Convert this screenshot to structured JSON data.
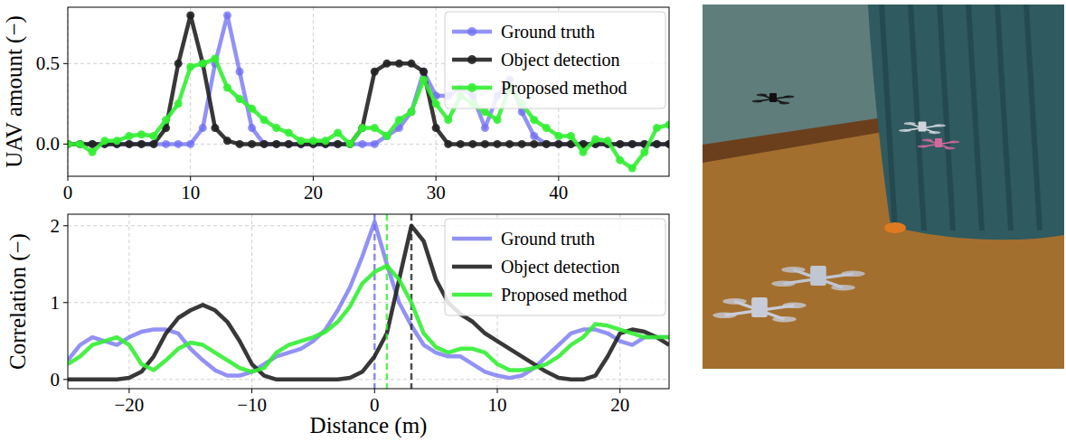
{
  "chart_data": [
    {
      "type": "line",
      "y_label": "UAV amount (−)",
      "x": [
        0,
        1,
        2,
        3,
        4,
        5,
        6,
        7,
        8,
        9,
        10,
        11,
        12,
        13,
        14,
        15,
        16,
        17,
        18,
        19,
        20,
        21,
        22,
        23,
        24,
        25,
        26,
        27,
        28,
        29,
        30,
        31,
        32,
        33,
        34,
        35,
        36,
        37,
        38,
        39,
        40,
        41,
        42,
        43,
        44,
        45,
        46,
        47,
        48,
        49
      ],
      "xlim": [
        0,
        49
      ],
      "xticks": [
        0,
        10,
        20,
        30,
        40
      ],
      "ylim": [
        -0.2,
        0.85
      ],
      "yticks": [
        {
          "value": 0,
          "label": "0.0"
        },
        {
          "value": 0.5,
          "label": "0.5"
        }
      ],
      "grid": true,
      "legend": "upper right",
      "series": [
        {
          "name": "Ground truth",
          "color": "#6e6ef2",
          "marker": "circle",
          "values": [
            0,
            0,
            0,
            0,
            0,
            0,
            0,
            0,
            0,
            0,
            0,
            0.1,
            0.5,
            0.8,
            0.45,
            0.1,
            0,
            0,
            0,
            0,
            0,
            0,
            0,
            0,
            0,
            0,
            0.05,
            0.1,
            0.2,
            0.45,
            0.3,
            0.3,
            0.35,
            0.3,
            0.1,
            0.3,
            0.4,
            0.2,
            0.05,
            0,
            0,
            0,
            0,
            0,
            0,
            0,
            0,
            0,
            0,
            0
          ]
        },
        {
          "name": "Object detection",
          "color": "#222222",
          "marker": "circle",
          "values": [
            0,
            0,
            0,
            0,
            0,
            0,
            0,
            0,
            0.1,
            0.5,
            0.8,
            0.5,
            0.1,
            0.02,
            0,
            0,
            0,
            0,
            0,
            0,
            0,
            0,
            0,
            0,
            0.1,
            0.45,
            0.5,
            0.5,
            0.5,
            0.45,
            0.1,
            0,
            0,
            0,
            0,
            0,
            0,
            0,
            0,
            0,
            0,
            0,
            0,
            0,
            0,
            0,
            0,
            0,
            0,
            0
          ]
        },
        {
          "name": "Proposed method",
          "color": "#33ee33",
          "marker": "circle",
          "values": [
            0,
            0,
            -0.05,
            0.02,
            0.02,
            0.05,
            0.06,
            0.05,
            0.15,
            0.25,
            0.48,
            0.5,
            0.53,
            0.35,
            0.28,
            0.22,
            0.15,
            0.1,
            0.07,
            0.02,
            0.02,
            0.02,
            0.07,
            0,
            0.1,
            0.1,
            0.05,
            0.15,
            0.2,
            0.4,
            0.25,
            0.15,
            0.3,
            0.25,
            0.2,
            0.15,
            0.35,
            0.25,
            0.15,
            0.1,
            0.05,
            0.05,
            -0.05,
            0.03,
            0.02,
            -0.1,
            -0.15,
            -0.05,
            0.1,
            0.12
          ]
        }
      ]
    },
    {
      "type": "line",
      "y_label": "Correlation (−)",
      "x_label": "Distance (m)",
      "x": [
        -25,
        -24,
        -23,
        -22,
        -21,
        -20,
        -19,
        -18,
        -17,
        -16,
        -15,
        -14,
        -13,
        -12,
        -11,
        -10,
        -9,
        -8,
        -7,
        -6,
        -5,
        -4,
        -3,
        -2,
        -1,
        0,
        1,
        2,
        3,
        4,
        5,
        6,
        7,
        8,
        9,
        10,
        11,
        12,
        13,
        14,
        15,
        16,
        17,
        18,
        19,
        20,
        21,
        22,
        23,
        24
      ],
      "xlim": [
        -25,
        24
      ],
      "xticks": [
        {
          "value": -20,
          "label": "−20"
        },
        {
          "value": -10,
          "label": "−10"
        },
        0,
        10,
        20
      ],
      "ylim": [
        -0.12,
        2.15
      ],
      "yticks": [
        0,
        1,
        2
      ],
      "grid": true,
      "legend": "upper right",
      "series": [
        {
          "name": "Ground truth",
          "color": "#6e6ef2",
          "peak": 0,
          "values": [
            0.25,
            0.45,
            0.55,
            0.5,
            0.45,
            0.55,
            0.62,
            0.65,
            0.65,
            0.6,
            0.4,
            0.25,
            0.12,
            0.05,
            0.05,
            0.1,
            0.2,
            0.3,
            0.35,
            0.4,
            0.5,
            0.65,
            0.9,
            1.2,
            1.6,
            2.05,
            1.5,
            1.0,
            0.7,
            0.45,
            0.35,
            0.3,
            0.3,
            0.2,
            0.1,
            0.05,
            0.02,
            0.05,
            0.15,
            0.3,
            0.45,
            0.6,
            0.65,
            0.65,
            0.6,
            0.5,
            0.45,
            0.55,
            0.55,
            0.55
          ]
        },
        {
          "name": "Object detection",
          "color": "#222222",
          "peak": 3,
          "values": [
            0,
            0,
            0,
            0,
            0,
            0.02,
            0.1,
            0.3,
            0.6,
            0.8,
            0.9,
            0.97,
            0.9,
            0.75,
            0.5,
            0.2,
            0.05,
            0,
            0,
            0,
            0,
            0,
            0,
            0.02,
            0.1,
            0.3,
            0.6,
            1.3,
            2.0,
            1.8,
            1.3,
            1.0,
            0.85,
            0.75,
            0.6,
            0.5,
            0.4,
            0.3,
            0.2,
            0.1,
            0.02,
            0,
            0,
            0.05,
            0.3,
            0.6,
            0.65,
            0.62,
            0.55,
            0.45
          ]
        },
        {
          "name": "Proposed method",
          "color": "#33ee33",
          "peak": 1,
          "values": [
            0.2,
            0.3,
            0.45,
            0.5,
            0.55,
            0.45,
            0.2,
            0.12,
            0.25,
            0.4,
            0.48,
            0.45,
            0.35,
            0.25,
            0.15,
            0.1,
            0.15,
            0.35,
            0.45,
            0.5,
            0.55,
            0.62,
            0.75,
            0.95,
            1.25,
            1.4,
            1.48,
            1.3,
            1.0,
            0.6,
            0.42,
            0.35,
            0.4,
            0.4,
            0.35,
            0.2,
            0.12,
            0.12,
            0.15,
            0.2,
            0.3,
            0.45,
            0.55,
            0.72,
            0.7,
            0.65,
            0.6,
            0.55,
            0.55,
            0.55
          ]
        }
      ]
    }
  ]
}
